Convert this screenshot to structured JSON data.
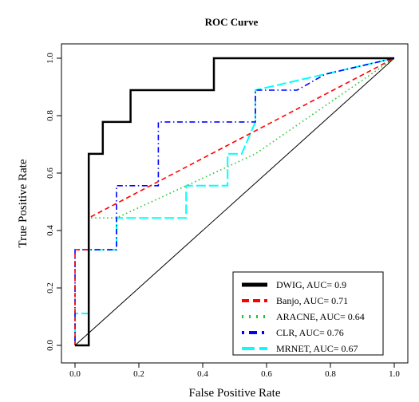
{
  "chart_data": {
    "type": "line",
    "title": "ROC Curve",
    "xlabel": "False Positive Rate",
    "ylabel": "True Positive Rate",
    "xlim": [
      0,
      1
    ],
    "ylim": [
      0,
      1
    ],
    "xticks": [
      "0.0",
      "0.2",
      "0.4",
      "0.6",
      "0.8",
      "1.0"
    ],
    "yticks": [
      "0.0",
      "0.2",
      "0.4",
      "0.6",
      "0.8",
      "1.0"
    ],
    "grid": false,
    "legend_position": "bottom-right",
    "reference_line": "diagonal",
    "series": [
      {
        "name": "DWIG, AUC= 0.9",
        "color": "#000000",
        "dash": "solid",
        "points": [
          [
            0,
            0
          ],
          [
            0.043,
            0
          ],
          [
            0.043,
            0.222
          ],
          [
            0.043,
            0.444
          ],
          [
            0.043,
            0.667
          ],
          [
            0.087,
            0.667
          ],
          [
            0.087,
            0.778
          ],
          [
            0.174,
            0.778
          ],
          [
            0.174,
            0.889
          ],
          [
            0.435,
            0.889
          ],
          [
            0.435,
            1.0
          ],
          [
            1.0,
            1.0
          ]
        ]
      },
      {
        "name": "Banjo, AUC= 0.71",
        "color": "#ff0000",
        "dash": "dashed",
        "points": [
          [
            0,
            0
          ],
          [
            0,
            0.222
          ],
          [
            0,
            0.333
          ],
          [
            0.043,
            0.333
          ],
          [
            0.043,
            0.444
          ],
          [
            1.0,
            1.0
          ]
        ]
      },
      {
        "name": "ARACNE, AUC= 0.64",
        "color": "#22c32e",
        "dash": "dotted",
        "points": [
          [
            0,
            0
          ],
          [
            0.043,
            0
          ],
          [
            0.043,
            0.444
          ],
          [
            0.13,
            0.444
          ],
          [
            0.565,
            0.667
          ],
          [
            1.0,
            1.0
          ]
        ]
      },
      {
        "name": "CLR, AUC= 0.76",
        "color": "#0000ff",
        "dash": "dotdash",
        "points": [
          [
            0,
            0
          ],
          [
            0,
            0.333
          ],
          [
            0.13,
            0.333
          ],
          [
            0.13,
            0.556
          ],
          [
            0.261,
            0.556
          ],
          [
            0.261,
            0.778
          ],
          [
            0.565,
            0.778
          ],
          [
            0.565,
            0.889
          ],
          [
            0.696,
            0.889
          ],
          [
            0.783,
            0.944
          ],
          [
            1.0,
            1.0
          ]
        ]
      },
      {
        "name": "MRNET, AUC= 0.67",
        "color": "#00ffff",
        "dash": "longdash",
        "points": [
          [
            0,
            0
          ],
          [
            0,
            0.111
          ],
          [
            0.043,
            0.111
          ],
          [
            0.043,
            0.333
          ],
          [
            0.13,
            0.333
          ],
          [
            0.13,
            0.444
          ],
          [
            0.348,
            0.444
          ],
          [
            0.348,
            0.556
          ],
          [
            0.478,
            0.556
          ],
          [
            0.478,
            0.667
          ],
          [
            0.522,
            0.667
          ],
          [
            0.565,
            0.778
          ],
          [
            0.565,
            0.889
          ],
          [
            1.0,
            1.0
          ]
        ]
      }
    ]
  }
}
